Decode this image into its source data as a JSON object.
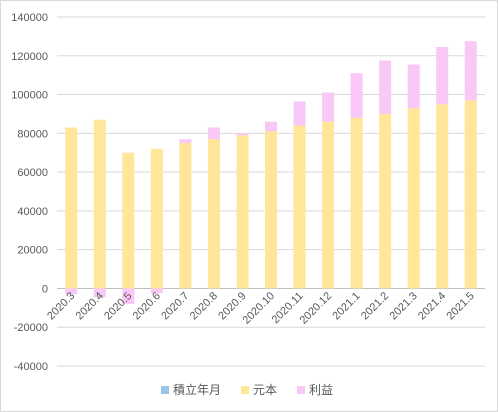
{
  "chart_data": {
    "type": "bar",
    "stacked": true,
    "categories": [
      "2020.3",
      "2020.4",
      "2020.5",
      "2020.6",
      "2020.7",
      "2020.8",
      "2020.9",
      "2020.10",
      "2020.11",
      "2020.12",
      "2021.1",
      "2021.2",
      "2021.3",
      "2021.4",
      "2021.5"
    ],
    "series": [
      {
        "name": "積立年月",
        "color": "#9dc3e6",
        "values": [
          0,
          0,
          0,
          0,
          0,
          0,
          0,
          0,
          0,
          0,
          0,
          0,
          0,
          0,
          0
        ]
      },
      {
        "name": "元本",
        "color": "#ffe699",
        "values": [
          83000,
          87000,
          70000,
          72000,
          75000,
          77000,
          79000,
          81000,
          84000,
          86000,
          88000,
          90000,
          93000,
          95000,
          97000
        ]
      },
      {
        "name": "利益",
        "color": "#f9c8f6",
        "values": [
          -3000,
          -4500,
          -8000,
          -2500,
          2000,
          6000,
          1000,
          5000,
          12500,
          15000,
          23000,
          27500,
          22500,
          29500,
          30500
        ]
      }
    ],
    "ylim": [
      -40000,
      140000
    ],
    "yticks": [
      "-40000",
      "-20000",
      "0",
      "20000",
      "40000",
      "60000",
      "80000",
      "100000",
      "120000",
      "140000"
    ],
    "grid": true,
    "legend_position": "bottom"
  }
}
